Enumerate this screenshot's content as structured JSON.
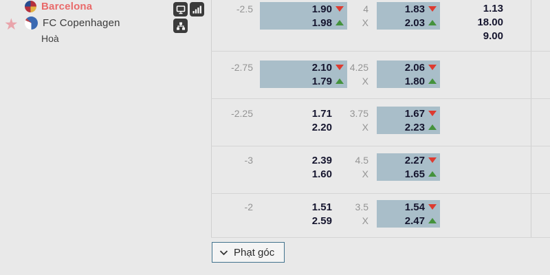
{
  "match_panel": {
    "home_team": "Barcelona",
    "away_team": "FC Copenhagen",
    "draw_label": "Hoà",
    "tools": [
      "live-tv",
      "stats-bars",
      "lineup"
    ]
  },
  "full_time_odds": {
    "home": "1.13",
    "away": "18.00",
    "draw": "9.00"
  },
  "odds_table": {
    "rows": [
      {
        "handicap": "-2.5",
        "handicap_cell": {
          "highlight": true,
          "top": "1.90",
          "top_trend": "down",
          "bottom": "1.98",
          "bottom_trend": "up"
        },
        "total_line": "4",
        "draw_mark": "X",
        "total_cell": {
          "highlight": true,
          "top": "1.83",
          "top_trend": "down",
          "bottom": "2.03",
          "bottom_trend": "up"
        }
      },
      {
        "handicap": "-2.75",
        "handicap_cell": {
          "highlight": true,
          "top": "2.10",
          "top_trend": "down",
          "bottom": "1.79",
          "bottom_trend": "up"
        },
        "total_line": "4.25",
        "draw_mark": "X",
        "total_cell": {
          "highlight": true,
          "top": "2.06",
          "top_trend": "down",
          "bottom": "1.80",
          "bottom_trend": "up"
        }
      },
      {
        "handicap": "-2.25",
        "handicap_cell": {
          "highlight": false,
          "top": "1.71",
          "top_trend": null,
          "bottom": "2.20",
          "bottom_trend": null
        },
        "total_line": "3.75",
        "draw_mark": "X",
        "total_cell": {
          "highlight": true,
          "top": "1.67",
          "top_trend": "down",
          "bottom": "2.23",
          "bottom_trend": "up"
        }
      },
      {
        "handicap": "-3",
        "handicap_cell": {
          "highlight": false,
          "top": "2.39",
          "top_trend": null,
          "bottom": "1.60",
          "bottom_trend": null
        },
        "total_line": "4.5",
        "draw_mark": "X",
        "total_cell": {
          "highlight": true,
          "top": "2.27",
          "top_trend": "down",
          "bottom": "1.65",
          "bottom_trend": "up"
        }
      },
      {
        "handicap": "-2",
        "handicap_cell": {
          "highlight": false,
          "top": "1.51",
          "top_trend": null,
          "bottom": "2.59",
          "bottom_trend": null
        },
        "total_line": "3.5",
        "draw_mark": "X",
        "total_cell": {
          "highlight": true,
          "top": "1.54",
          "top_trend": "down",
          "bottom": "2.47",
          "bottom_trend": "up"
        }
      }
    ]
  },
  "footer": {
    "market_button": "Phạt góc"
  },
  "colors": {
    "background": "#e9e9e9",
    "cell_highlight": "#a9bec9",
    "odds_text": "#15152e",
    "muted_text": "#949494",
    "home_team_text": "#e96a6a",
    "arrow_down": "#dd3b30",
    "arrow_up": "#44923c",
    "favorite_star": "#e9a4ab",
    "icon_background": "#3b3b3b",
    "market_button_border": "#40718c"
  }
}
